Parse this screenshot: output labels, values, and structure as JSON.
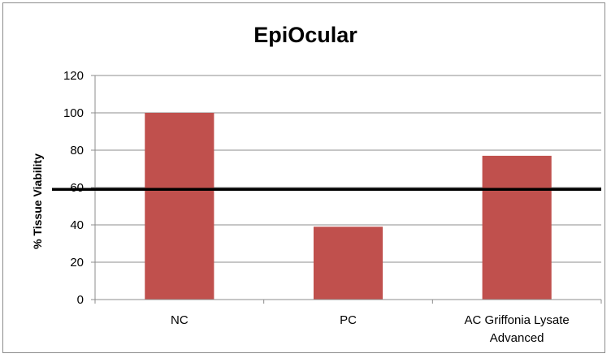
{
  "chart_data": {
    "type": "bar",
    "title": "EpiOcular",
    "xlabel": "",
    "ylabel": "% Tissue Viability",
    "ylim": [
      0,
      120
    ],
    "yticks": [
      0,
      20,
      40,
      60,
      80,
      100,
      120
    ],
    "categories": [
      [
        "NC"
      ],
      [
        "PC"
      ],
      [
        "AC Griffonia Lysate",
        "Advanced"
      ]
    ],
    "series": [
      {
        "values": [
          100,
          39,
          77
        ],
        "color": "#c0504d"
      }
    ],
    "reference_line": {
      "value": 59,
      "color": "#000000"
    },
    "grid": true,
    "legend": "none"
  }
}
